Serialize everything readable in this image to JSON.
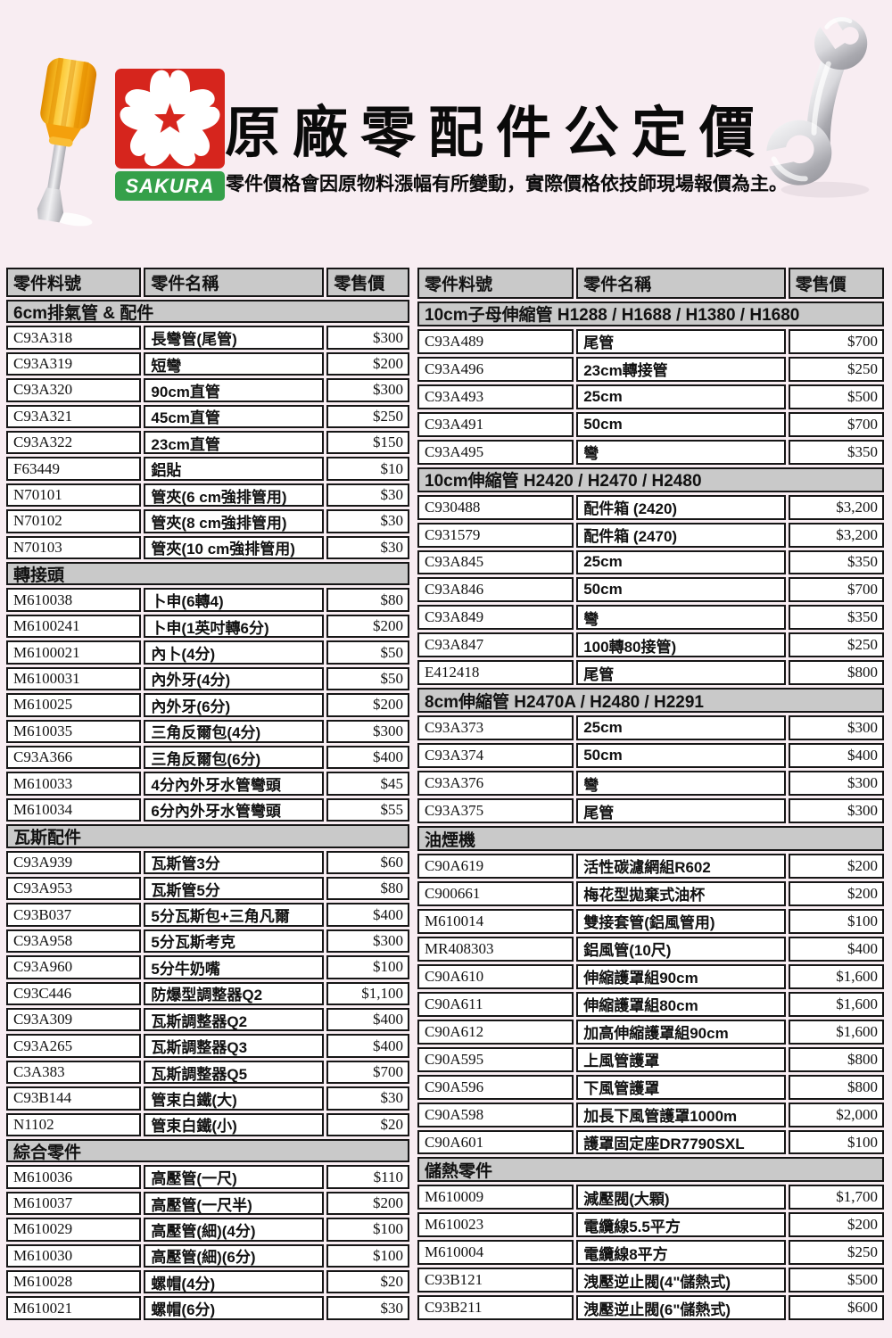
{
  "colors": {
    "page_bg": "#f8edf2",
    "logo_red": "#d6251d",
    "logo_green": "#35a04a",
    "table_band_gray": "#c9c9c9",
    "cell_bg": "#ffffff",
    "border": "#161616"
  },
  "header": {
    "title": "原廠零配件公定價",
    "subtitle": "零件價格會因原物料漲幅有所變動，實際價格依技師現場報價為主。",
    "logo_text": "SAKURA",
    "icons": [
      "screwdriver-image",
      "wrench-image",
      "sakura-flower-mark"
    ]
  },
  "tables": [
    {
      "columns": [
        "零件料號",
        "零件名稱",
        "零售價"
      ],
      "sections": [
        {
          "title": "6cm排氣管 & 配件",
          "rows": [
            [
              "C93A318",
              "長彎管(尾管)",
              "$300"
            ],
            [
              "C93A319",
              "短彎",
              "$200"
            ],
            [
              "C93A320",
              "90cm直管",
              "$300"
            ],
            [
              "C93A321",
              "45cm直管",
              "$250"
            ],
            [
              "C93A322",
              "23cm直管",
              "$150"
            ],
            [
              "F63449",
              "鋁貼",
              "$10"
            ],
            [
              "N70101",
              "管夾(6 cm強排管用)",
              "$30"
            ],
            [
              "N70102",
              "管夾(8 cm強排管用)",
              "$30"
            ],
            [
              "N70103",
              "管夾(10 cm強排管用)",
              "$30"
            ]
          ]
        },
        {
          "title": "轉接頭",
          "rows": [
            [
              "M610038",
              "卜申(6轉4)",
              "$80"
            ],
            [
              "M6100241",
              "卜申(1英吋轉6分)",
              "$200"
            ],
            [
              "M6100021",
              "內卜(4分)",
              "$50"
            ],
            [
              "M6100031",
              "內外牙(4分)",
              "$50"
            ],
            [
              "M610025",
              "內外牙(6分)",
              "$200"
            ],
            [
              "M610035",
              "三角反爾包(4分)",
              "$300"
            ],
            [
              "C93A366",
              "三角反爾包(6分)",
              "$400"
            ],
            [
              "M610033",
              "4分內外牙水管彎頭",
              "$45"
            ],
            [
              "M610034",
              "6分內外牙水管彎頭",
              "$55"
            ]
          ]
        },
        {
          "title": "瓦斯配件",
          "rows": [
            [
              "C93A939",
              "瓦斯管3分",
              "$60"
            ],
            [
              "C93A953",
              "瓦斯管5分",
              "$80"
            ],
            [
              "C93B037",
              "5分瓦斯包+三角凡爾",
              "$400"
            ],
            [
              "C93A958",
              "5分瓦斯考克",
              "$300"
            ],
            [
              "C93A960",
              "5分牛奶嘴",
              "$100"
            ],
            [
              "C93C446",
              "防爆型調整器Q2",
              "$1,100"
            ],
            [
              "C93A309",
              "瓦斯調整器Q2",
              "$400"
            ],
            [
              "C93A265",
              "瓦斯調整器Q3",
              "$400"
            ],
            [
              "C3A383",
              "瓦斯調整器Q5",
              "$700"
            ],
            [
              "C93B144",
              "管束白鐵(大)",
              "$30"
            ],
            [
              "N1102",
              "管束白鐵(小)",
              "$20"
            ]
          ]
        },
        {
          "title": "綜合零件",
          "rows": [
            [
              "M610036",
              "高壓管(一尺)",
              "$110"
            ],
            [
              "M610037",
              "高壓管(一尺半)",
              "$200"
            ],
            [
              "M610029",
              "高壓管(細)(4分)",
              "$100"
            ],
            [
              "M610030",
              "高壓管(細)(6分)",
              "$100"
            ],
            [
              "M610028",
              "螺帽(4分)",
              "$20"
            ],
            [
              "M610021",
              "螺帽(6分)",
              "$30"
            ]
          ]
        }
      ]
    },
    {
      "columns": [
        "零件料號",
        "零件名稱",
        "零售價"
      ],
      "sections": [
        {
          "title": "10cm子母伸縮管 H1288 / H1688 / H1380 / H1680",
          "rows": [
            [
              "C93A489",
              "尾管",
              "$700"
            ],
            [
              "C93A496",
              "23cm轉接管",
              "$250"
            ],
            [
              "C93A493",
              "25cm",
              "$500"
            ],
            [
              "C93A491",
              "50cm",
              "$700"
            ],
            [
              "C93A495",
              "彎",
              "$350"
            ]
          ]
        },
        {
          "title": "10cm伸縮管 H2420 / H2470 / H2480",
          "rows": [
            [
              "C930488",
              "配件箱 (2420)",
              "$3,200"
            ],
            [
              "C931579",
              "配件箱 (2470)",
              "$3,200"
            ],
            [
              "C93A845",
              "25cm",
              "$350"
            ],
            [
              "C93A846",
              "50cm",
              "$700"
            ],
            [
              "C93A849",
              "彎",
              "$350"
            ],
            [
              "C93A847",
              "100轉80接管)",
              "$250"
            ],
            [
              "E412418",
              "尾管",
              "$800"
            ]
          ]
        },
        {
          "title": "8cm伸縮管 H2470A / H2480 / H2291",
          "rows": [
            [
              "C93A373",
              "25cm",
              "$300"
            ],
            [
              "C93A374",
              "50cm",
              "$400"
            ],
            [
              "C93A376",
              "彎",
              "$300"
            ],
            [
              "C93A375",
              "尾管",
              "$300"
            ]
          ]
        },
        {
          "title": "油煙機",
          "rows": [
            [
              "C90A619",
              "活性碳濾網組R602",
              "$200"
            ],
            [
              "C900661",
              "梅花型拋棄式油杯",
              "$200"
            ],
            [
              "M610014",
              "雙接套管(鋁風管用)",
              "$100"
            ],
            [
              "MR408303",
              "鋁風管(10尺)",
              "$400"
            ],
            [
              "C90A610",
              "伸縮護罩組90cm",
              "$1,600"
            ],
            [
              "C90A611",
              "伸縮護罩組80cm",
              "$1,600"
            ],
            [
              "C90A612",
              "加高伸縮護罩組90cm",
              "$1,600"
            ],
            [
              "C90A595",
              "上風管護罩",
              "$800"
            ],
            [
              "C90A596",
              "下風管護罩",
              "$800"
            ],
            [
              "C90A598",
              "加長下風管護罩1000m",
              "$2,000"
            ],
            [
              "C90A601",
              "護罩固定座DR7790SXL",
              "$100"
            ]
          ]
        },
        {
          "title": "儲熱零件",
          "rows": [
            [
              "M610009",
              "減壓閥(大顆)",
              "$1,700"
            ],
            [
              "M610023",
              "電纜線5.5平方",
              "$200"
            ],
            [
              "M610004",
              "電纜線8平方",
              "$250"
            ],
            [
              "C93B121",
              "洩壓逆止閥(4\"儲熱式)",
              "$500"
            ],
            [
              "C93B211",
              "洩壓逆止閥(6\"儲熱式)",
              "$600"
            ]
          ]
        }
      ]
    }
  ]
}
